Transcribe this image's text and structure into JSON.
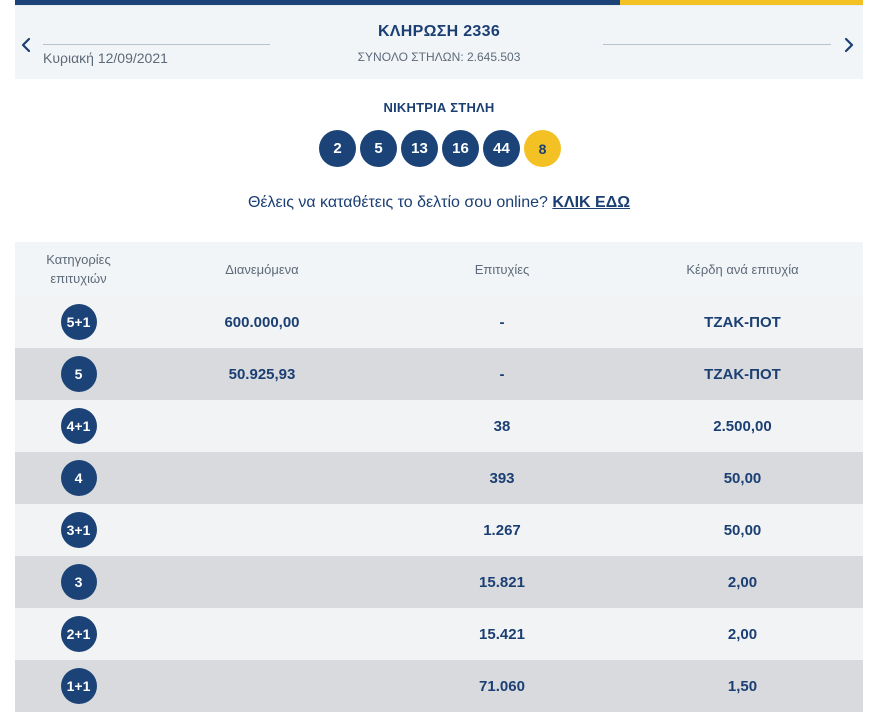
{
  "draw": {
    "title": "ΚΛΗΡΩΣΗ 2336",
    "date": "Κυριακή 12/09/2021",
    "total_columns": "ΣΥΝΟΛΟ ΣΤΗΛΩΝ: 2.645.503"
  },
  "winning": {
    "title": "ΝΙΚΗΤΡΙΑ ΣΤΗΛΗ",
    "numbers": [
      "2",
      "5",
      "13",
      "16",
      "44"
    ],
    "joker": "8"
  },
  "cta": {
    "text": "Θέλεις να καταθέτεις το δελτίο σου online?",
    "link": "ΚΛΙΚ ΕΔΩ"
  },
  "table": {
    "headers": {
      "category_line1": "Κατηγορίες",
      "category_line2": "επιτυχιών",
      "distributed": "Διανεμόμενα",
      "winners": "Επιτυχίες",
      "prize": "Κέρδη ανά επιτυχία"
    },
    "rows": [
      {
        "category": "5+1",
        "distributed": "600.000,00",
        "winners": "-",
        "prize": "ΤΖΑΚ-ΠΟΤ"
      },
      {
        "category": "5",
        "distributed": "50.925,93",
        "winners": "-",
        "prize": "ΤΖΑΚ-ΠΟΤ"
      },
      {
        "category": "4+1",
        "distributed": "",
        "winners": "38",
        "prize": "2.500,00"
      },
      {
        "category": "4",
        "distributed": "",
        "winners": "393",
        "prize": "50,00"
      },
      {
        "category": "3+1",
        "distributed": "",
        "winners": "1.267",
        "prize": "50,00"
      },
      {
        "category": "3",
        "distributed": "",
        "winners": "15.821",
        "prize": "2,00"
      },
      {
        "category": "2+1",
        "distributed": "",
        "winners": "15.421",
        "prize": "2,00"
      },
      {
        "category": "1+1",
        "distributed": "",
        "winners": "71.060",
        "prize": "1,50"
      }
    ]
  },
  "icons": {
    "prev": "chevron-left-icon",
    "next": "chevron-right-icon"
  },
  "colors": {
    "navy": "#1b4377",
    "yellow": "#f4c124",
    "text": "#1b3f73",
    "row_light": "#f2f3f5",
    "row_dark": "#d8dade"
  }
}
